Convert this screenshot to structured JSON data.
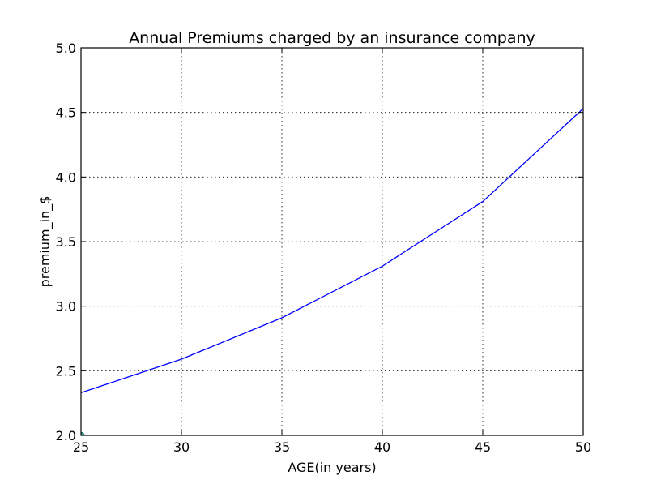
{
  "chart_data": {
    "type": "line",
    "title": "Annual Premiums charged by an insurance company",
    "xlabel": "AGE(in years)",
    "ylabel": "premium_in_$",
    "xlim": [
      25,
      50
    ],
    "ylim": [
      2.0,
      5.0
    ],
    "x_ticks": [
      25,
      30,
      35,
      40,
      45,
      50
    ],
    "x_tick_labels": [
      "25",
      "30",
      "35",
      "40",
      "45",
      "50"
    ],
    "y_ticks": [
      2.0,
      2.5,
      3.0,
      3.5,
      4.0,
      4.5,
      5.0
    ],
    "y_tick_labels": [
      "2.0",
      "2.5",
      "3.0",
      "3.5",
      "4.0",
      "4.5",
      "5.0"
    ],
    "grid": true,
    "series": [
      {
        "color": "#0000ff",
        "x": [
          25,
          30,
          35,
          40,
          45,
          50
        ],
        "y": [
          2.33,
          2.59,
          2.91,
          3.31,
          3.81,
          4.53
        ]
      }
    ],
    "marker_points": [
      {
        "x": 25,
        "y": 2.0,
        "color": "#2a9d8f"
      }
    ]
  }
}
